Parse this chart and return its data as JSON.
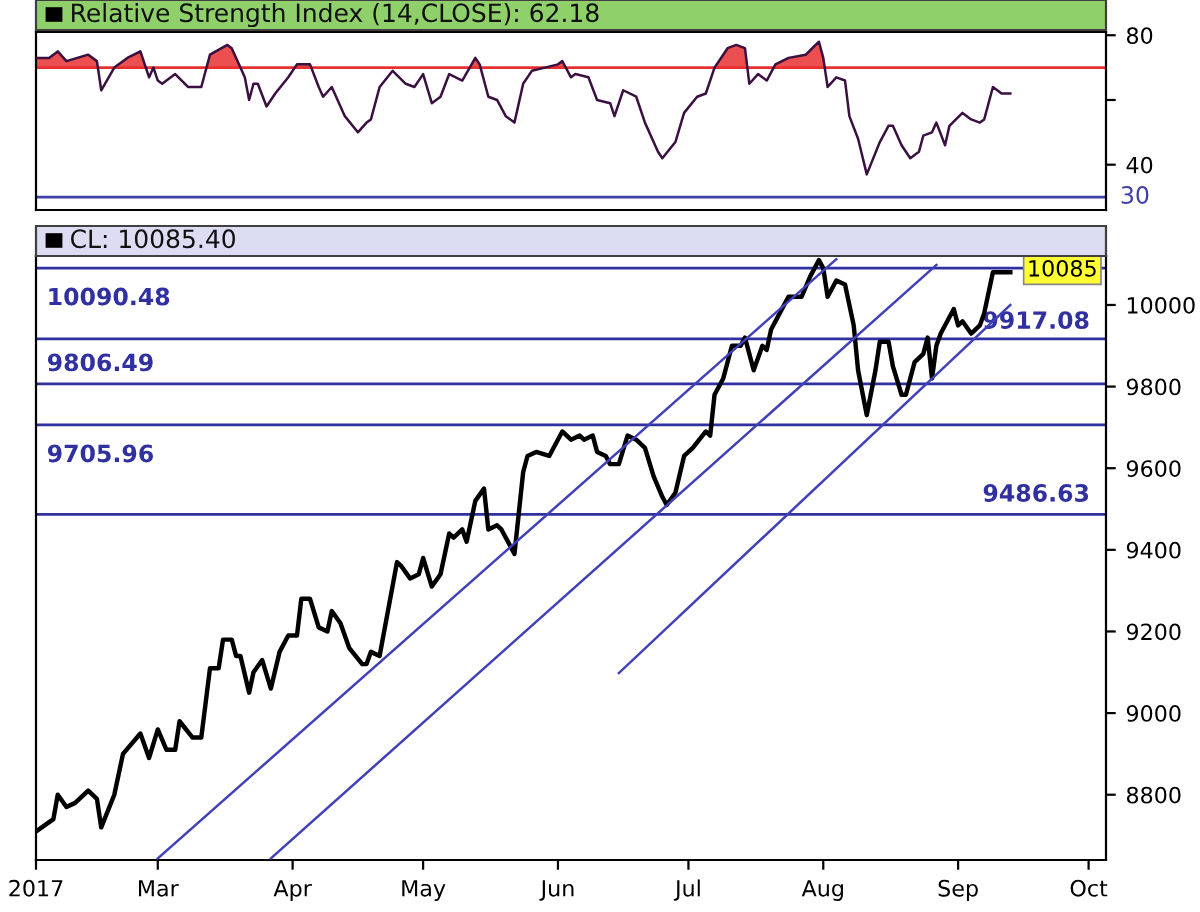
{
  "chart_data": [
    {
      "type": "line",
      "title": "Relative Strength Index (14,CLOSE): 62.18",
      "xlim": [
        "2017-02-01",
        "2017-10-05"
      ],
      "ylim": [
        26,
        81
      ],
      "yticks": [
        40,
        {
          "value": 60,
          "label": null
        },
        80
      ],
      "tick_labels": "y",
      "series": [
        {
          "color": "#3a1040",
          "x": [
            "2017-02-01",
            "2017-02-04",
            "2017-02-06",
            "2017-02-08",
            "2017-02-13",
            "2017-02-15",
            "2017-02-16",
            "2017-02-19",
            "2017-02-22",
            "2017-02-25",
            "2017-02-27",
            "2017-02-28",
            "2017-03-01",
            "2017-03-02",
            "2017-03-05",
            "2017-03-08",
            "2017-03-11",
            "2017-03-13",
            "2017-03-17",
            "2017-03-18",
            "2017-03-21",
            "2017-03-22",
            "2017-03-23",
            "2017-03-24",
            "2017-03-26",
            "2017-03-28",
            "2017-03-31",
            "2017-04-02",
            "2017-04-05",
            "2017-04-07",
            "2017-04-08",
            "2017-04-10",
            "2017-04-13",
            "2017-04-16",
            "2017-04-18",
            "2017-04-19",
            "2017-04-21",
            "2017-04-24",
            "2017-04-27",
            "2017-04-29",
            "2017-05-01",
            "2017-05-03",
            "2017-05-05",
            "2017-05-07",
            "2017-05-10",
            "2017-05-13",
            "2017-05-14",
            "2017-05-16",
            "2017-05-18",
            "2017-05-20",
            "2017-05-22",
            "2017-05-24",
            "2017-05-26",
            "2017-05-29",
            "2017-06-01",
            "2017-06-02",
            "2017-06-04",
            "2017-06-05",
            "2017-06-08",
            "2017-06-10",
            "2017-06-13",
            "2017-06-14",
            "2017-06-16",
            "2017-06-19",
            "2017-06-21",
            "2017-06-24",
            "2017-06-25",
            "2017-06-28",
            "2017-06-30",
            "2017-07-03",
            "2017-07-05",
            "2017-07-07",
            "2017-07-10",
            "2017-07-12",
            "2017-07-14",
            "2017-07-15",
            "2017-07-17",
            "2017-07-19",
            "2017-07-21",
            "2017-07-24",
            "2017-07-28",
            "2017-07-31",
            "2017-08-01",
            "2017-08-02",
            "2017-08-04",
            "2017-08-06",
            "2017-08-07",
            "2017-08-09",
            "2017-08-11",
            "2017-08-14",
            "2017-08-16",
            "2017-08-17",
            "2017-08-19",
            "2017-08-21",
            "2017-08-23",
            "2017-08-24",
            "2017-08-26",
            "2017-08-27",
            "2017-08-29",
            "2017-08-30",
            "2017-09-02",
            "2017-09-04",
            "2017-09-06",
            "2017-09-07",
            "2017-09-09",
            "2017-09-11",
            "2017-09-13"
          ],
          "values": [
            73,
            73,
            75,
            72,
            74,
            72,
            63,
            70,
            73,
            75,
            67,
            70,
            66,
            65,
            68,
            64,
            64,
            74,
            77,
            76,
            67,
            60,
            65,
            65,
            58,
            62,
            67,
            71,
            71,
            64,
            61,
            64,
            55,
            50,
            53,
            54,
            64,
            69,
            65,
            64,
            68,
            59,
            61,
            68,
            66,
            73,
            71,
            61,
            60,
            55,
            53,
            65,
            69,
            70,
            71,
            72,
            67,
            68,
            67,
            60,
            59,
            55,
            63,
            61,
            53,
            44,
            42,
            47,
            56,
            61,
            62,
            70,
            76,
            77,
            76,
            65,
            68,
            66,
            71,
            73,
            74,
            78,
            73,
            64,
            67,
            66,
            55,
            48,
            37,
            47,
            52,
            52,
            46,
            42,
            44,
            49,
            50,
            53,
            46,
            52,
            56,
            54,
            53,
            54,
            64,
            62,
            62
          ]
        }
      ],
      "ref_lines": [
        {
          "axis": "y",
          "value": 70,
          "color": "#e83030"
        },
        {
          "axis": "y",
          "value": 30,
          "label": "30",
          "color": "#4040a8"
        }
      ]
    },
    {
      "type": "line",
      "title": "CL: 10085.40",
      "xlim": [
        "2017-02-01",
        "2017-10-05"
      ],
      "ylim": [
        8640,
        10120
      ],
      "yticks": [
        8800,
        9000,
        9200,
        9400,
        9600,
        9800,
        10000
      ],
      "xticks": [
        {
          "value": "2017-02-01",
          "label": "2017"
        },
        {
          "value": "2017-03-01",
          "label": "Mar"
        },
        {
          "value": "2017-04-01",
          "label": "Apr"
        },
        {
          "value": "2017-05-01",
          "label": "May"
        },
        {
          "value": "2017-06-01",
          "label": "Jun"
        },
        {
          "value": "2017-07-01",
          "label": "Jul"
        },
        {
          "value": "2017-08-01",
          "label": "Aug"
        },
        {
          "value": "2017-09-01",
          "label": "Sep"
        },
        {
          "value": "2017-10-01",
          "label": "Oct"
        }
      ],
      "series": [
        {
          "color": "#000000",
          "x": [
            "2017-02-01",
            "2017-02-05",
            "2017-02-06",
            "2017-02-08",
            "2017-02-10",
            "2017-02-13",
            "2017-02-15",
            "2017-02-16",
            "2017-02-19",
            "2017-02-21",
            "2017-02-25",
            "2017-02-27",
            "2017-03-01",
            "2017-03-03",
            "2017-03-05",
            "2017-03-06",
            "2017-03-09",
            "2017-03-11",
            "2017-03-13",
            "2017-03-15",
            "2017-03-16",
            "2017-03-18",
            "2017-03-19",
            "2017-03-20",
            "2017-03-22",
            "2017-03-23",
            "2017-03-25",
            "2017-03-27",
            "2017-03-29",
            "2017-03-31",
            "2017-04-02",
            "2017-04-03",
            "2017-04-05",
            "2017-04-07",
            "2017-04-09",
            "2017-04-10",
            "2017-04-12",
            "2017-04-14",
            "2017-04-17",
            "2017-04-18",
            "2017-04-19",
            "2017-04-21",
            "2017-04-25",
            "2017-04-26",
            "2017-04-28",
            "2017-04-30",
            "2017-05-01",
            "2017-05-03",
            "2017-05-05",
            "2017-05-07",
            "2017-05-08",
            "2017-05-10",
            "2017-05-11",
            "2017-05-13",
            "2017-05-15",
            "2017-05-16",
            "2017-05-18",
            "2017-05-19",
            "2017-05-22",
            "2017-05-24",
            "2017-05-25",
            "2017-05-27",
            "2017-05-30",
            "2017-05-31",
            "2017-06-02",
            "2017-06-04",
            "2017-06-06",
            "2017-06-07",
            "2017-06-09",
            "2017-06-10",
            "2017-06-12",
            "2017-06-13",
            "2017-06-15",
            "2017-06-17",
            "2017-06-19",
            "2017-06-21",
            "2017-06-23",
            "2017-06-25",
            "2017-06-26",
            "2017-06-28",
            "2017-06-30",
            "2017-07-02",
            "2017-07-05",
            "2017-07-06",
            "2017-07-07",
            "2017-07-09",
            "2017-07-11",
            "2017-07-13",
            "2017-07-14",
            "2017-07-16",
            "2017-07-18",
            "2017-07-19",
            "2017-07-20",
            "2017-07-22",
            "2017-07-24",
            "2017-07-27",
            "2017-07-29",
            "2017-07-31",
            "2017-08-01",
            "2017-08-02",
            "2017-08-04",
            "2017-08-06",
            "2017-08-08",
            "2017-08-09",
            "2017-08-11",
            "2017-08-13",
            "2017-08-14",
            "2017-08-16",
            "2017-08-17",
            "2017-08-19",
            "2017-08-20",
            "2017-08-22",
            "2017-08-24",
            "2017-08-25",
            "2017-08-26",
            "2017-08-27",
            "2017-08-28",
            "2017-08-31",
            "2017-09-01",
            "2017-09-02",
            "2017-09-04",
            "2017-09-06",
            "2017-09-07",
            "2017-09-09",
            "2017-09-11",
            "2017-09-13"
          ],
          "values": [
            8710,
            8740,
            8800,
            8770,
            8780,
            8810,
            8790,
            8720,
            8800,
            8900,
            8950,
            8890,
            8960,
            8910,
            8910,
            8980,
            8940,
            8940,
            9110,
            9110,
            9180,
            9180,
            9140,
            9140,
            9050,
            9100,
            9130,
            9060,
            9150,
            9190,
            9190,
            9280,
            9280,
            9210,
            9200,
            9250,
            9220,
            9160,
            9120,
            9120,
            9150,
            9140,
            9370,
            9360,
            9330,
            9340,
            9380,
            9310,
            9340,
            9440,
            9430,
            9450,
            9420,
            9520,
            9550,
            9450,
            9460,
            9450,
            9390,
            9590,
            9630,
            9640,
            9630,
            9650,
            9690,
            9670,
            9680,
            9670,
            9680,
            9640,
            9630,
            9610,
            9610,
            9680,
            9670,
            9650,
            9580,
            9530,
            9510,
            9540,
            9630,
            9650,
            9690,
            9680,
            9780,
            9820,
            9900,
            9900,
            9920,
            9840,
            9900,
            9890,
            9940,
            9980,
            10020,
            10020,
            10070,
            10110,
            10090,
            10020,
            10060,
            10050,
            9950,
            9840,
            9730,
            9840,
            9910,
            9910,
            9850,
            9780,
            9780,
            9860,
            9880,
            9920,
            9820,
            9900,
            9930,
            9990,
            9950,
            9960,
            9930,
            9950,
            9980,
            10080,
            10080,
            10080
          ]
        },
        {
          "type": "line",
          "color": "#4040b8",
          "x": [
            "2017-03-01",
            "2017-08-04"
          ],
          "values": [
            8644,
            10112
          ]
        },
        {
          "type": "line",
          "color": "#4040b8",
          "x": [
            "2017-03-27",
            "2017-08-27"
          ],
          "values": [
            8644,
            10098
          ]
        },
        {
          "type": "line",
          "color": "#4040b8",
          "x": [
            "2017-06-15",
            "2017-09-13"
          ],
          "values": [
            9098,
            10000
          ]
        }
      ],
      "ref_lines": [
        {
          "axis": "y",
          "value": 10090.48,
          "label": "10090.48",
          "color": "#3030a0"
        },
        {
          "axis": "y",
          "value": 9917.08,
          "label": "9917.08",
          "color": "#3030a0"
        },
        {
          "axis": "y",
          "value": 9806.49,
          "label": "9806.49",
          "color": "#3030a0"
        },
        {
          "axis": "y",
          "value": 9705.96,
          "label": "9705.96",
          "color": "#3030a0"
        },
        {
          "axis": "y",
          "value": 9486.63,
          "label": "9486.63",
          "color": "#3030a0"
        }
      ],
      "annotations": [
        {
          "text": "10085",
          "x": "2017-09-13",
          "y": 10085
        }
      ]
    }
  ]
}
